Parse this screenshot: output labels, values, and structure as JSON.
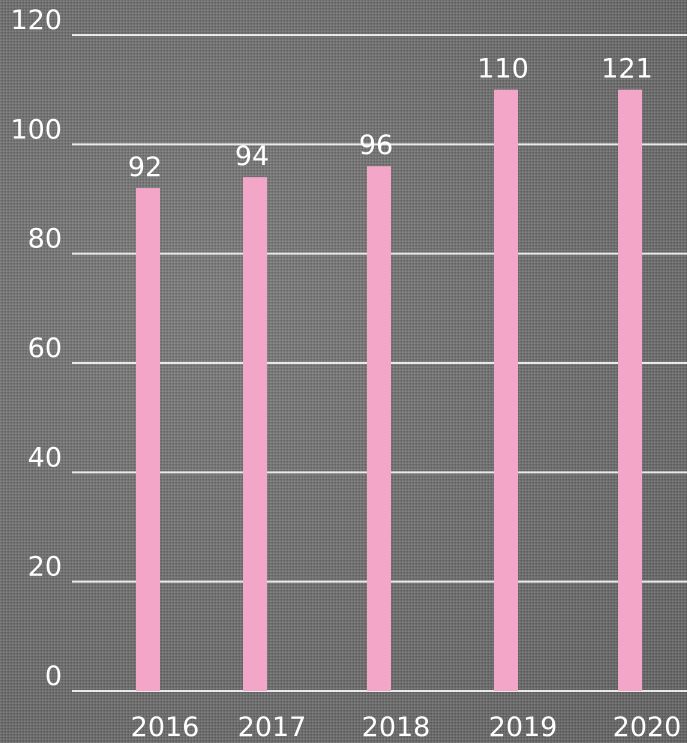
{
  "chart_data": {
    "type": "bar",
    "categories": [
      "2016",
      "2017",
      "2018",
      "2019",
      "2020"
    ],
    "series": [
      {
        "values": [
          92,
          94,
          96,
          110,
          121
        ]
      }
    ],
    "data_labels": [
      "92",
      "94",
      "96",
      "110",
      "121"
    ],
    "title": "",
    "xlabel": "",
    "ylabel": "",
    "ylim": [
      0,
      120
    ],
    "yticks": [
      0,
      20,
      40,
      60,
      80,
      100,
      120
    ],
    "grid": true,
    "bar_color": "#f4a6c8",
    "text_color": "#ffffff",
    "grid_color": "#e9e9e9"
  }
}
